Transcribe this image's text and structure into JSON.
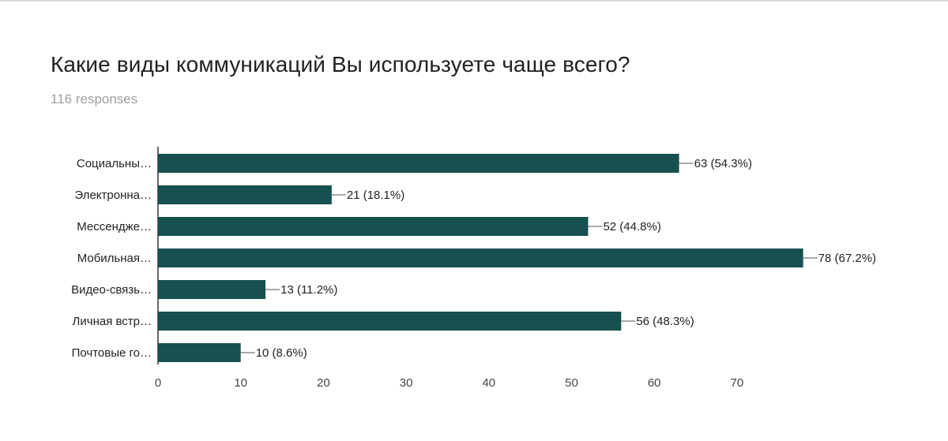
{
  "header": {
    "title": "Какие виды коммуникаций Вы используете чаще всего?",
    "responses": "116 responses"
  },
  "colors": {
    "bar": "#16504f",
    "axis": "#333333",
    "text": "#212121",
    "muted": "#9e9e9e"
  },
  "chart_data": {
    "type": "bar",
    "orientation": "horizontal",
    "categories": [
      "Социальны…",
      "Электронна…",
      "Мессендже…",
      "Мобильная…",
      "Видео-связь…",
      "Личная встр…",
      "Почтовые го…"
    ],
    "values": [
      63,
      21,
      52,
      78,
      13,
      56,
      10
    ],
    "value_labels": [
      "63 (54.3%)",
      "21 (18.1%)",
      "52 (44.8%)",
      "78 (67.2%)",
      "13 (11.2%)",
      "56 (48.3%)",
      "10 (8.6%)"
    ],
    "xticks": [
      "0",
      "10",
      "20",
      "30",
      "40",
      "50",
      "60",
      "70"
    ],
    "xlim": [
      0,
      80
    ],
    "grid": false
  }
}
